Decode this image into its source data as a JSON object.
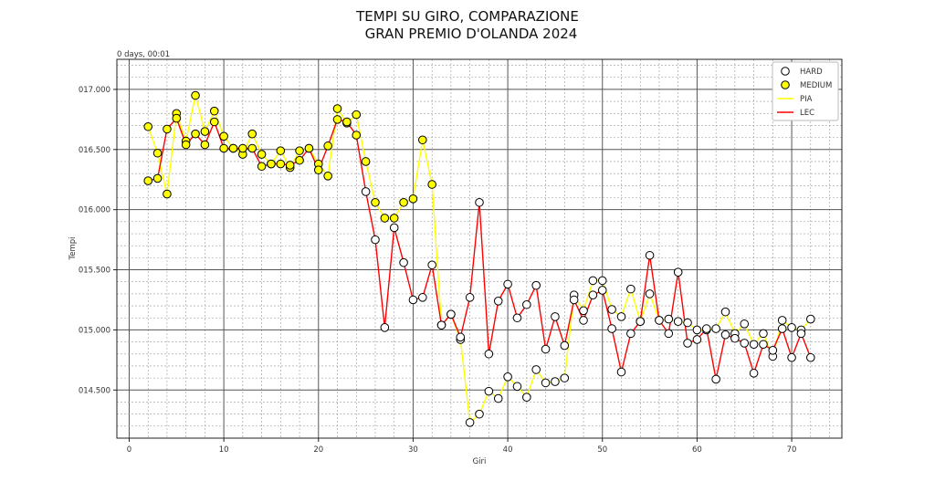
{
  "chart_data": {
    "type": "line",
    "title_line1": "TEMPI SU GIRO, COMPARAZIONE",
    "title_line2": "GRAN PREMIO D'OLANDA 2024",
    "xlabel": "Giri",
    "ylabel": "Tempi",
    "offset_text": "0 days, 00:01",
    "xlim": [
      -1.3,
      75.3
    ],
    "ylim": [
      14.1,
      17.25
    ],
    "x_ticks": [
      0,
      10,
      20,
      30,
      40,
      50,
      60,
      70
    ],
    "y_ticks": [
      {
        "value": 14.5,
        "label": "014.500"
      },
      {
        "value": 15.0,
        "label": "015.000"
      },
      {
        "value": 15.5,
        "label": "015.500"
      },
      {
        "value": 16.0,
        "label": "016.000"
      },
      {
        "value": 16.5,
        "label": "016.500"
      },
      {
        "value": 17.0,
        "label": "017.000"
      }
    ],
    "grid": true,
    "legend_position": "top-right",
    "legend": [
      {
        "label": "HARD",
        "kind": "marker",
        "fill": "#ffffff"
      },
      {
        "label": "MEDIUM",
        "kind": "marker",
        "fill": "#ffff00"
      },
      {
        "label": "PIA",
        "kind": "line",
        "color": "#ffff00"
      },
      {
        "label": "LEC",
        "kind": "line",
        "color": "#ff0000"
      }
    ],
    "series": [
      {
        "name": "PIA",
        "color": "#ffff00",
        "x": [
          2,
          3,
          4,
          5,
          6,
          7,
          8,
          9,
          10,
          11,
          12,
          13,
          14,
          15,
          16,
          17,
          18,
          19,
          20,
          21,
          22,
          23,
          24,
          25,
          26,
          27,
          28,
          29,
          30,
          31,
          32,
          33,
          34,
          35,
          36,
          37,
          38,
          39,
          40,
          41,
          42,
          43,
          44,
          45,
          46,
          47,
          48,
          49,
          50,
          51,
          52,
          53,
          54,
          55,
          56,
          57,
          58,
          59,
          60,
          61,
          62,
          63,
          64,
          65,
          66,
          67,
          68,
          69,
          70,
          71,
          72
        ],
        "y": [
          16.69,
          16.47,
          16.13,
          16.8,
          16.57,
          16.95,
          16.65,
          16.82,
          16.61,
          16.51,
          16.46,
          16.63,
          16.46,
          16.38,
          16.49,
          16.35,
          16.49,
          16.51,
          16.38,
          16.28,
          16.84,
          16.72,
          16.79,
          16.4,
          16.06,
          15.93,
          15.93,
          16.06,
          16.09,
          16.58,
          16.21,
          15.04,
          15.13,
          14.92,
          14.23,
          14.3,
          14.49,
          14.43,
          14.61,
          14.53,
          14.44,
          14.67,
          14.56,
          14.57,
          14.6,
          15.29,
          15.16,
          15.41,
          15.41,
          15.17,
          15.11,
          15.34,
          15.07,
          15.3,
          15.08,
          15.09,
          15.07,
          15.06,
          15.0,
          15.0,
          15.01,
          15.15,
          14.97,
          15.05,
          14.88,
          14.97,
          14.78,
          15.08,
          15.02,
          15.0,
          15.09
        ],
        "tyre": [
          "M",
          "M",
          "M",
          "M",
          "M",
          "M",
          "M",
          "M",
          "M",
          "M",
          "M",
          "M",
          "M",
          "M",
          "M",
          "M",
          "M",
          "M",
          "M",
          "M",
          "M",
          "M",
          "M",
          "M",
          "M",
          "M",
          "M",
          "M",
          "M",
          "M",
          "M",
          "H",
          "H",
          "H",
          "H",
          "H",
          "H",
          "H",
          "H",
          "H",
          "H",
          "H",
          "H",
          "H",
          "H",
          "H",
          "H",
          "H",
          "H",
          "H",
          "H",
          "H",
          "H",
          "H",
          "H",
          "H",
          "H",
          "H",
          "H",
          "H",
          "H",
          "H",
          "H",
          "H",
          "H",
          "H",
          "H",
          "H",
          "H",
          "H",
          "H"
        ]
      },
      {
        "name": "LEC",
        "color": "#ff0000",
        "x": [
          2,
          3,
          4,
          5,
          6,
          7,
          8,
          9,
          10,
          11,
          12,
          13,
          14,
          15,
          16,
          17,
          18,
          19,
          20,
          21,
          22,
          23,
          24,
          25,
          26,
          27,
          28,
          29,
          30,
          31,
          32,
          33,
          34,
          35,
          36,
          37,
          38,
          39,
          40,
          41,
          42,
          43,
          44,
          45,
          46,
          47,
          48,
          49,
          50,
          51,
          52,
          53,
          54,
          55,
          56,
          57,
          58,
          59,
          60,
          61,
          62,
          63,
          64,
          65,
          66,
          67,
          68,
          69,
          70,
          71,
          72
        ],
        "y": [
          16.24,
          16.26,
          16.67,
          16.76,
          16.54,
          16.63,
          16.54,
          16.73,
          16.51,
          16.51,
          16.51,
          16.51,
          16.36,
          16.38,
          16.38,
          16.37,
          16.41,
          16.51,
          16.33,
          16.53,
          16.75,
          16.73,
          16.62,
          16.15,
          15.75,
          15.02,
          15.85,
          15.56,
          15.25,
          15.27,
          15.54,
          15.04,
          15.13,
          14.94,
          15.27,
          16.06,
          14.8,
          15.24,
          15.38,
          15.1,
          15.21,
          15.37,
          14.84,
          15.11,
          14.87,
          15.25,
          15.08,
          15.29,
          15.33,
          15.01,
          14.65,
          14.97,
          15.07,
          15.62,
          15.08,
          14.97,
          15.48,
          14.89,
          14.92,
          15.01,
          14.59,
          14.96,
          14.93,
          14.89,
          14.64,
          14.88,
          14.83,
          15.01,
          14.77,
          14.97,
          14.77
        ],
        "tyre": [
          "M",
          "M",
          "M",
          "M",
          "M",
          "M",
          "M",
          "M",
          "M",
          "M",
          "M",
          "M",
          "M",
          "M",
          "M",
          "M",
          "M",
          "M",
          "M",
          "M",
          "M",
          "M",
          "M",
          "H",
          "H",
          "H",
          "H",
          "H",
          "H",
          "H",
          "H",
          "H",
          "H",
          "H",
          "H",
          "H",
          "H",
          "H",
          "H",
          "H",
          "H",
          "H",
          "H",
          "H",
          "H",
          "H",
          "H",
          "H",
          "H",
          "H",
          "H",
          "H",
          "H",
          "H",
          "H",
          "H",
          "H",
          "H",
          "H",
          "H",
          "H",
          "H",
          "H",
          "H",
          "H",
          "H",
          "H",
          "H",
          "H",
          "H",
          "H"
        ]
      }
    ]
  }
}
